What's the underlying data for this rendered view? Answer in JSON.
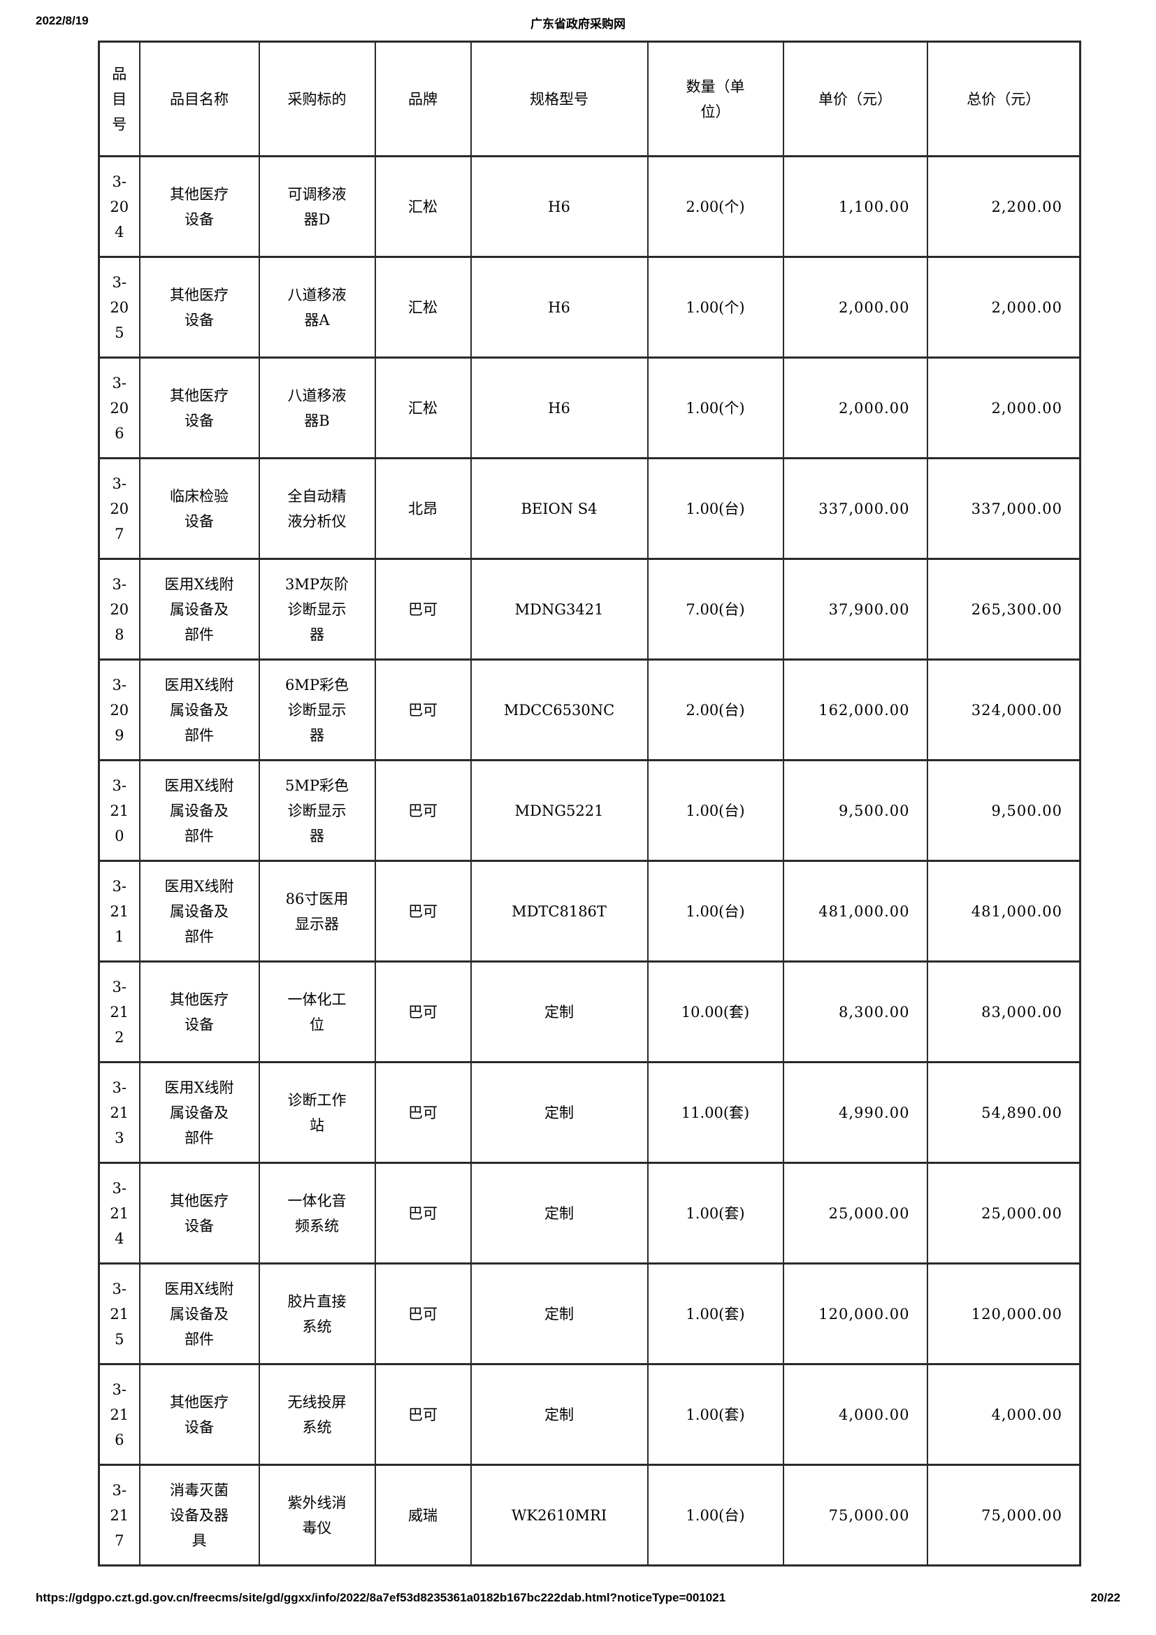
{
  "page": {
    "date": "2022/8/19",
    "site_title": "广东省政府采购网",
    "footer_url": "https://gdgpo.czt.gd.gov.cn/freecms/site/gd/ggxx/info/2022/8a7ef53d8235361a0182b167bc222dab.html?noticeType=001021",
    "page_number": "20/22"
  },
  "table": {
    "headers": [
      "品目号",
      "品目名称",
      "采购标的",
      "品牌",
      "规格型号",
      "数量（单位）",
      "单价（元）",
      "总价（元）"
    ],
    "rows": [
      {
        "item_no": "3-204",
        "item_name": "其他医疗设备",
        "target": "可调移液器D",
        "brand": "汇松",
        "model": "H6",
        "quantity": "2.00(个)",
        "unit_price": "1,100.00",
        "total_price": "2,200.00"
      },
      {
        "item_no": "3-205",
        "item_name": "其他医疗设备",
        "target": "八道移液器A",
        "brand": "汇松",
        "model": "H6",
        "quantity": "1.00(个)",
        "unit_price": "2,000.00",
        "total_price": "2,000.00"
      },
      {
        "item_no": "3-206",
        "item_name": "其他医疗设备",
        "target": "八道移液器B",
        "brand": "汇松",
        "model": "H6",
        "quantity": "1.00(个)",
        "unit_price": "2,000.00",
        "total_price": "2,000.00"
      },
      {
        "item_no": "3-207",
        "item_name": "临床检验设备",
        "target": "全自动精液分析仪",
        "brand": "北昂",
        "model": "BEION S4",
        "quantity": "1.00(台)",
        "unit_price": "337,000.00",
        "total_price": "337,000.00"
      },
      {
        "item_no": "3-208",
        "item_name": "医用X线附属设备及部件",
        "target": "3MP灰阶诊断显示器",
        "brand": "巴可",
        "model": "MDNG3421",
        "quantity": "7.00(台)",
        "unit_price": "37,900.00",
        "total_price": "265,300.00"
      },
      {
        "item_no": "3-209",
        "item_name": "医用X线附属设备及部件",
        "target": "6MP彩色诊断显示器",
        "brand": "巴可",
        "model": "MDCC6530NC",
        "quantity": "2.00(台)",
        "unit_price": "162,000.00",
        "total_price": "324,000.00"
      },
      {
        "item_no": "3-210",
        "item_name": "医用X线附属设备及部件",
        "target": "5MP彩色诊断显示器",
        "brand": "巴可",
        "model": "MDNG5221",
        "quantity": "1.00(台)",
        "unit_price": "9,500.00",
        "total_price": "9,500.00"
      },
      {
        "item_no": "3-211",
        "item_name": "医用X线附属设备及部件",
        "target": "86寸医用显示器",
        "brand": "巴可",
        "model": "MDTC8186T",
        "quantity": "1.00(台)",
        "unit_price": "481,000.00",
        "total_price": "481,000.00"
      },
      {
        "item_no": "3-212",
        "item_name": "其他医疗设备",
        "target": "一体化工位",
        "brand": "巴可",
        "model": "定制",
        "quantity": "10.00(套)",
        "unit_price": "8,300.00",
        "total_price": "83,000.00"
      },
      {
        "item_no": "3-213",
        "item_name": "医用X线附属设备及部件",
        "target": "诊断工作站",
        "brand": "巴可",
        "model": "定制",
        "quantity": "11.00(套)",
        "unit_price": "4,990.00",
        "total_price": "54,890.00"
      },
      {
        "item_no": "3-214",
        "item_name": "其他医疗设备",
        "target": "一体化音频系统",
        "brand": "巴可",
        "model": "定制",
        "quantity": "1.00(套)",
        "unit_price": "25,000.00",
        "total_price": "25,000.00"
      },
      {
        "item_no": "3-215",
        "item_name": "医用X线附属设备及部件",
        "target": "胶片直接系统",
        "brand": "巴可",
        "model": "定制",
        "quantity": "1.00(套)",
        "unit_price": "120,000.00",
        "total_price": "120,000.00"
      },
      {
        "item_no": "3-216",
        "item_name": "其他医疗设备",
        "target": "无线投屏系统",
        "brand": "巴可",
        "model": "定制",
        "quantity": "1.00(套)",
        "unit_price": "4,000.00",
        "total_price": "4,000.00"
      },
      {
        "item_no": "3-217",
        "item_name": "消毒灭菌设备及器具",
        "target": "紫外线消毒仪",
        "brand": "威瑞",
        "model": "WK2610MRI",
        "quantity": "1.00(台)",
        "unit_price": "75,000.00",
        "total_price": "75,000.00"
      }
    ]
  }
}
